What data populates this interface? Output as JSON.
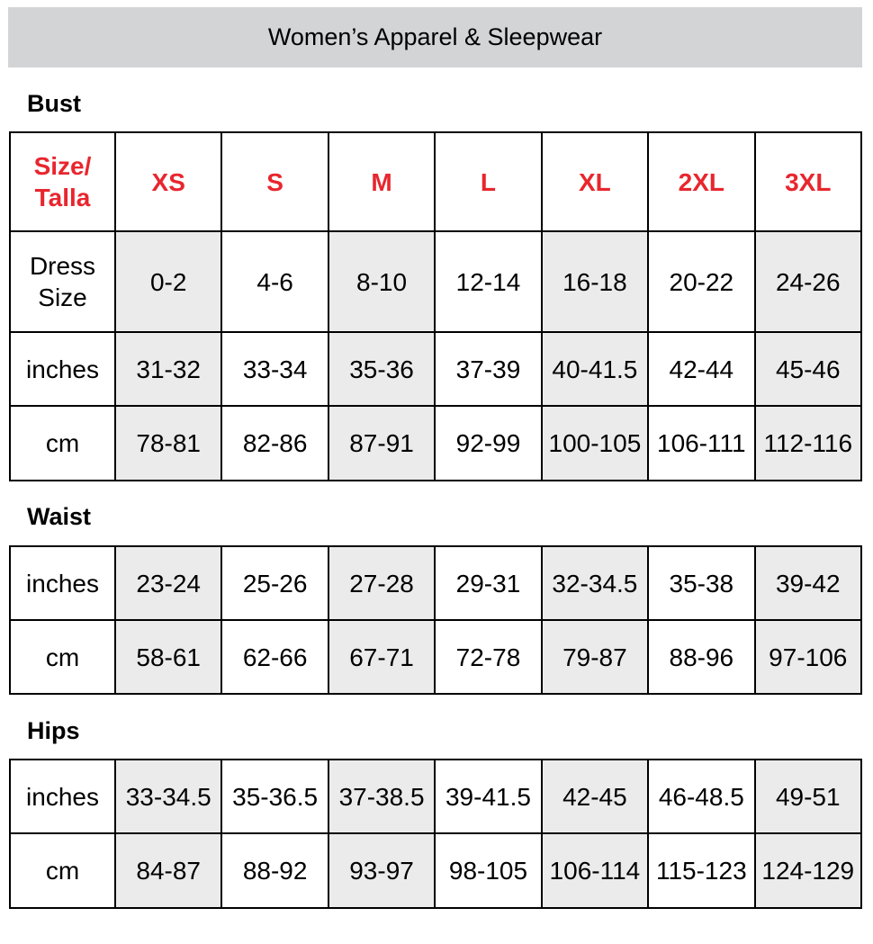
{
  "title": "Women’s Apparel & Sleepwear",
  "header": {
    "label_line1": "Size/",
    "label_line2": "Talla",
    "sizes": [
      "XS",
      "S",
      "M",
      "L",
      "XL",
      "2XL",
      "3XL"
    ]
  },
  "colors": {
    "header_text": "#e8262e",
    "shaded_cell": "#ebebeb",
    "banner": "#d3d4d6"
  },
  "bust": {
    "title": "Bust",
    "rows": [
      {
        "label_line1": "Dress",
        "label_line2": "Size",
        "values": [
          "0-2",
          "4-6",
          "8-10",
          "12-14",
          "16-18",
          "20-22",
          "24-26"
        ]
      },
      {
        "label": "inches",
        "values": [
          "31-32",
          "33-34",
          "35-36",
          "37-39",
          "40-41.5",
          "42-44",
          "45-46"
        ]
      },
      {
        "label": "cm",
        "values": [
          "78-81",
          "82-86",
          "87-91",
          "92-99",
          "100-105",
          "106-111",
          "112-116"
        ]
      }
    ]
  },
  "waist": {
    "title": "Waist",
    "rows": [
      {
        "label": "inches",
        "values": [
          "23-24",
          "25-26",
          "27-28",
          "29-31",
          "32-34.5",
          "35-38",
          "39-42"
        ]
      },
      {
        "label": "cm",
        "values": [
          "58-61",
          "62-66",
          "67-71",
          "72-78",
          "79-87",
          "88-96",
          "97-106"
        ]
      }
    ]
  },
  "hips": {
    "title": "Hips",
    "rows": [
      {
        "label": "inches",
        "values": [
          "33-34.5",
          "35-36.5",
          "37-38.5",
          "39-41.5",
          "42-45",
          "46-48.5",
          "49-51"
        ]
      },
      {
        "label": "cm",
        "values": [
          "84-87",
          "88-92",
          "93-97",
          "98-105",
          "106-114",
          "115-123",
          "124-129"
        ]
      }
    ]
  }
}
